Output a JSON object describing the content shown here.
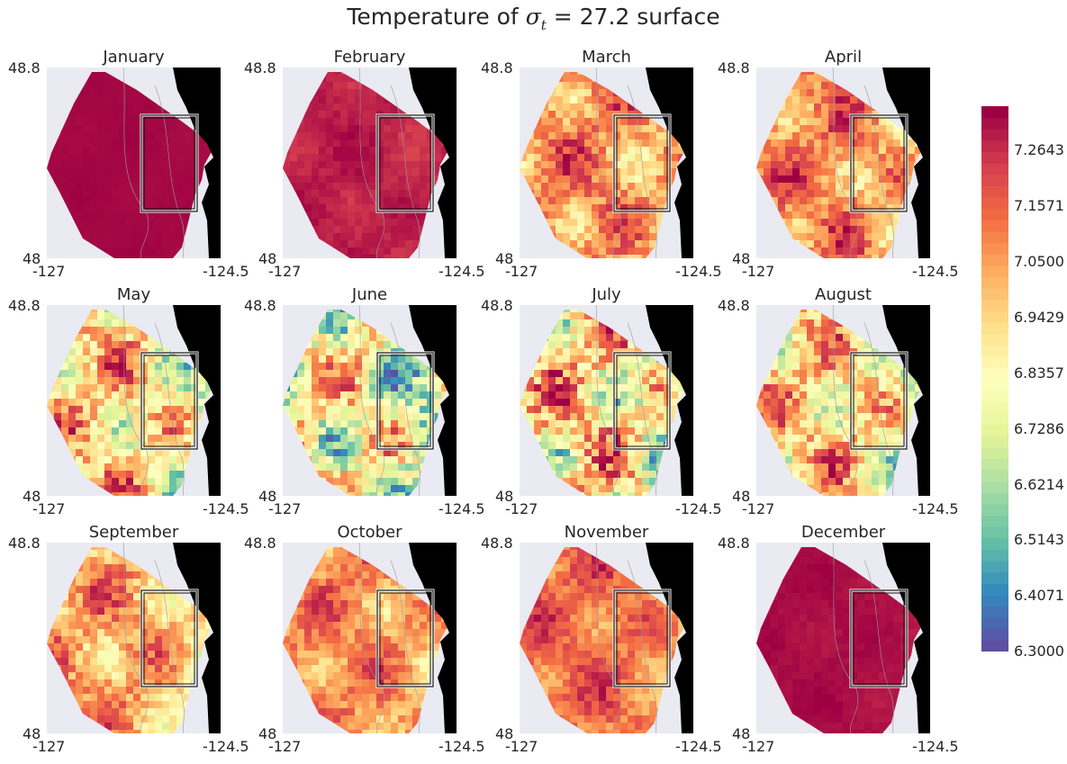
{
  "title_prefix": "Temperature of ",
  "title_sigma": "σ",
  "title_sub": "t",
  "title_eq": " = 27.2",
  "title_suffix": " surface",
  "chart_data": {
    "type": "heatmap",
    "xlim": [
      -127,
      -124.5
    ],
    "ylim": [
      48,
      48.8
    ],
    "x_tick_labels": [
      "-127",
      "-124.5"
    ],
    "y_tick_labels": [
      "48",
      "48.8"
    ],
    "colormap": "Spectral_r",
    "colorbar": {
      "vmin": 6.3,
      "vmax": 7.35,
      "tick_labels": [
        "6.3000",
        "6.4071",
        "6.5143",
        "6.6214",
        "6.7286",
        "6.8357",
        "6.9429",
        "7.0500",
        "7.1571",
        "7.2643"
      ]
    },
    "panels": [
      {
        "month": "January",
        "mean": 7.34,
        "spread": 0.01
      },
      {
        "month": "February",
        "mean": 7.3,
        "spread": 0.06
      },
      {
        "month": "March",
        "mean": 7.1,
        "spread": 0.3
      },
      {
        "month": "April",
        "mean": 7.1,
        "spread": 0.3
      },
      {
        "month": "May",
        "mean": 6.95,
        "spread": 0.45
      },
      {
        "month": "June",
        "mean": 6.85,
        "spread": 0.55
      },
      {
        "month": "July",
        "mean": 6.95,
        "spread": 0.55
      },
      {
        "month": "August",
        "mean": 6.95,
        "spread": 0.45
      },
      {
        "month": "September",
        "mean": 7.05,
        "spread": 0.3
      },
      {
        "month": "October",
        "mean": 7.1,
        "spread": 0.25
      },
      {
        "month": "November",
        "mean": 7.15,
        "spread": 0.2
      },
      {
        "month": "December",
        "mean": 7.33,
        "spread": 0.03
      }
    ]
  },
  "colors": {
    "land": "#000000",
    "ocean_bg": "#eaeaf2",
    "box": "#111111",
    "contour": "#9a9aa8"
  }
}
